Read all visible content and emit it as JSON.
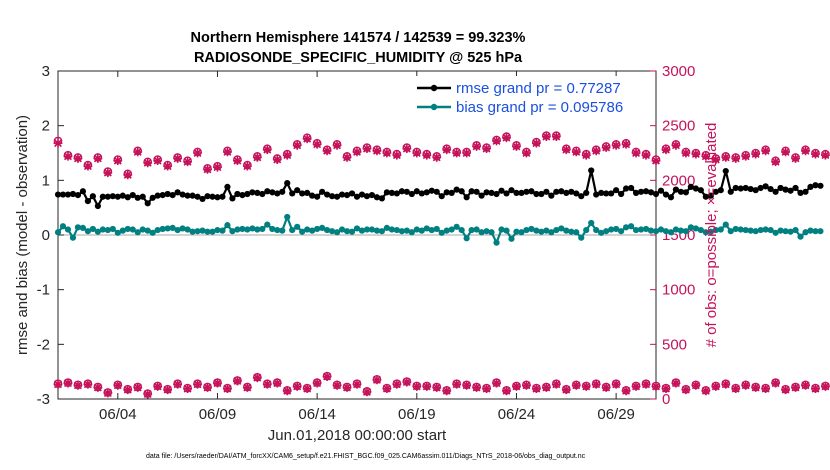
{
  "chart_data": {
    "type": "line",
    "title": "Northern Hemisphere 141574 / 142539 = 99.323%",
    "subtitle": "RADIOSONDE_SPECIFIC_HUMIDITY @ 525 hPa",
    "xlabel": "Jun.01,2018 00:00:00 start",
    "ylabel": "rmse and bias (model - observation)",
    "ylabel_right": "# of obs: o=possible; ×=evaluated",
    "footnote": "data file: /Users/raeder/DAI/ATM_forcXX/CAM6_setup/f.e21.FHIST_BGC.f09_025.CAM6assim.011/Diags_NTrS_2018-06/obs_diag_output.nc",
    "xlim": [
      1,
      31
    ],
    "ylim": [
      -3,
      3
    ],
    "ylim_right": [
      0,
      3000
    ],
    "xticks": [
      4,
      9,
      14,
      19,
      24,
      29
    ],
    "xtick_labels": [
      "06/04",
      "06/09",
      "06/14",
      "06/19",
      "06/24",
      "06/29"
    ],
    "yticks": [
      -3,
      -2,
      -1,
      0,
      1,
      2,
      3
    ],
    "ytick_labels": [
      "-3",
      "-2",
      "-1",
      "0",
      "1",
      "2",
      "3"
    ],
    "yticks_right": [
      0,
      500,
      1000,
      1500,
      2000,
      2500,
      3000
    ],
    "ytick_labels_right": [
      "0",
      "500",
      "1000",
      "1500",
      "2000",
      "2500",
      "3000"
    ],
    "grid": false,
    "legend_position": "top-right",
    "colors": {
      "rmse": "#000000",
      "bias": "#008080",
      "counts": "#c5135b",
      "zero_line": "#aaaaaa",
      "legend_text": "#1a4fe0"
    },
    "series": [
      {
        "name": "rmse grand pr = 0.77287",
        "axis": "left",
        "x_start": 1,
        "x_step": 0.25,
        "values": [
          0.74,
          0.74,
          0.74,
          0.75,
          0.73,
          0.8,
          0.62,
          0.71,
          0.53,
          0.7,
          0.7,
          0.71,
          0.7,
          0.72,
          0.69,
          0.73,
          0.68,
          0.7,
          0.58,
          0.68,
          0.72,
          0.73,
          0.75,
          0.73,
          0.78,
          0.74,
          0.72,
          0.72,
          0.7,
          0.66,
          0.71,
          0.7,
          0.69,
          0.7,
          0.88,
          0.67,
          0.75,
          0.73,
          0.75,
          0.78,
          0.77,
          0.75,
          0.8,
          0.78,
          0.76,
          0.79,
          0.95,
          0.76,
          0.82,
          0.76,
          0.77,
          0.72,
          0.7,
          0.79,
          0.74,
          0.71,
          0.7,
          0.74,
          0.73,
          0.76,
          0.7,
          0.74,
          0.71,
          0.73,
          0.69,
          0.67,
          0.78,
          0.77,
          0.76,
          0.8,
          0.79,
          0.75,
          0.8,
          0.76,
          0.78,
          0.81,
          0.79,
          0.71,
          0.78,
          0.77,
          0.83,
          0.8,
          0.69,
          0.8,
          0.79,
          0.72,
          0.78,
          0.77,
          0.75,
          0.81,
          0.76,
          0.82,
          0.77,
          0.77,
          0.79,
          0.8,
          0.75,
          0.75,
          0.79,
          0.72,
          0.79,
          0.8,
          0.77,
          0.79,
          0.76,
          0.71,
          0.77,
          1.18,
          0.74,
          0.77,
          0.76,
          0.76,
          0.82,
          0.75,
          0.85,
          0.86,
          0.77,
          0.79,
          0.8,
          0.78,
          0.75,
          0.81,
          0.74,
          0.69,
          0.83,
          0.79,
          0.78,
          0.88,
          0.85,
          0.82,
          0.7,
          0.72,
          0.79,
          0.82,
          1.17,
          0.79,
          0.86,
          0.85,
          0.86,
          0.84,
          0.82,
          0.86,
          0.89,
          0.84,
          0.79,
          0.86,
          0.83,
          0.81,
          0.86,
          0.77,
          0.79,
          0.88,
          0.91,
          0.9
        ]
      },
      {
        "name": "bias grand pr = 0.095786",
        "axis": "left",
        "x_start": 1,
        "x_step": 0.25,
        "values": [
          0.05,
          0.16,
          0.1,
          -0.05,
          0.14,
          0.13,
          0.07,
          0.11,
          0.06,
          0.1,
          0.09,
          0.11,
          0.04,
          0.08,
          0.11,
          0.1,
          0.05,
          0.1,
          0.08,
          0.04,
          0.09,
          0.11,
          0.12,
          0.13,
          0.09,
          0.12,
          0.1,
          0.06,
          0.07,
          0.08,
          0.06,
          0.06,
          0.09,
          0.08,
          0.18,
          0.07,
          0.1,
          0.11,
          0.1,
          0.12,
          0.1,
          0.11,
          0.19,
          0.11,
          0.09,
          0.08,
          0.33,
          0.09,
          0.15,
          0.06,
          0.1,
          0.08,
          0.11,
          0.13,
          0.09,
          0.07,
          0.05,
          0.1,
          0.07,
          0.06,
          0.12,
          0.08,
          0.1,
          0.1,
          0.08,
          0.07,
          0.13,
          0.1,
          0.09,
          0.07,
          0.08,
          0.05,
          0.1,
          0.08,
          0.12,
          0.09,
          0.11,
          0.04,
          0.08,
          0.1,
          0.15,
          0.09,
          -0.06,
          0.09,
          0.1,
          0.05,
          0.07,
          0.05,
          -0.14,
          0.1,
          0.08,
          -0.07,
          0.06,
          0.05,
          0.09,
          0.11,
          0.08,
          0.06,
          0.08,
          0.05,
          0.09,
          0.12,
          0.08,
          0.06,
          0.05,
          -0.05,
          0.09,
          0.22,
          0.09,
          0.04,
          0.07,
          0.1,
          0.11,
          0.07,
          0.14,
          0.16,
          0.09,
          0.1,
          0.11,
          0.08,
          0.07,
          0.1,
          0.07,
          0.05,
          0.1,
          0.08,
          0.07,
          0.14,
          0.12,
          0.09,
          0.05,
          0.06,
          0.09,
          0.1,
          0.19,
          0.07,
          0.11,
          0.1,
          0.09,
          0.08,
          0.07,
          0.09,
          0.1,
          0.09,
          0.04,
          0.08,
          0.07,
          0.06,
          0.09,
          -0.03,
          0.05,
          0.08,
          0.07,
          0.07
        ]
      },
      {
        "name": "obs possible",
        "axis": "right",
        "marker": "o",
        "x_start": 1,
        "x_step": 0.5,
        "values": [
          2360,
          2230,
          2210,
          2140,
          2210,
          2080,
          2190,
          2060,
          2270,
          2170,
          2190,
          2140,
          2210,
          2180,
          2260,
          2110,
          2130,
          2270,
          2190,
          2140,
          2220,
          2290,
          2200,
          2240,
          2330,
          2390,
          2340,
          2280,
          2330,
          2220,
          2270,
          2300,
          2280,
          2260,
          2240,
          2300,
          2260,
          2240,
          2220,
          2290,
          2260,
          2260,
          2320,
          2300,
          2370,
          2400,
          2320,
          2260,
          2350,
          2410,
          2410,
          2290,
          2270,
          2240,
          2280,
          2310,
          2330,
          2340,
          2260,
          2240,
          2190,
          2290,
          2330,
          2260,
          2250,
          2230,
          2200,
          2220,
          2210,
          2230,
          2250,
          2280,
          2180,
          2270,
          2210,
          2280,
          2250,
          2240,
          2280,
          2300,
          2300
        ],
        "evaluated_values": [
          2340,
          2220,
          2200,
          2130,
          2200,
          2070,
          2180,
          2050,
          2260,
          2160,
          2180,
          2130,
          2200,
          2170,
          2250,
          2100,
          2120,
          2260,
          2180,
          2130,
          2210,
          2280,
          2190,
          2230,
          2320,
          2380,
          2330,
          2270,
          2320,
          2210,
          2260,
          2290,
          2270,
          2250,
          2230,
          2290,
          2250,
          2230,
          2210,
          2280,
          2250,
          2250,
          2310,
          2290,
          2360,
          2390,
          2310,
          2250,
          2340,
          2400,
          2400,
          2280,
          2260,
          2230,
          2270,
          2300,
          2320,
          2330,
          2250,
          2230,
          2180,
          2280,
          2320,
          2250,
          2240,
          2220,
          2190,
          2210,
          2200,
          2220,
          2240,
          2270,
          2170,
          2260,
          2200,
          2270,
          2240,
          2230,
          2270,
          2290,
          2290
        ]
      },
      {
        "name": "obs possible (lower)",
        "axis": "right",
        "marker": "o",
        "x_start": 1,
        "x_step": 0.5,
        "values": [
          140,
          150,
          130,
          140,
          110,
          60,
          130,
          90,
          110,
          50,
          120,
          90,
          140,
          100,
          140,
          110,
          150,
          100,
          170,
          110,
          200,
          140,
          150,
          80,
          120,
          100,
          150,
          210,
          130,
          110,
          140,
          70,
          180,
          100,
          140,
          160,
          120,
          120,
          110,
          80,
          140,
          130,
          110,
          100,
          150,
          80,
          120,
          130,
          100,
          110,
          140,
          90,
          130,
          120,
          140,
          110,
          140,
          80,
          120,
          140,
          120,
          100,
          150,
          90,
          130,
          80,
          120,
          140,
          100,
          130,
          110,
          100,
          150,
          90,
          110,
          130,
          100,
          120,
          110,
          140,
          0
        ],
        "evaluated_values": [
          135,
          145,
          125,
          135,
          105,
          55,
          125,
          85,
          105,
          45,
          115,
          85,
          135,
          95,
          135,
          105,
          145,
          95,
          165,
          105,
          195,
          135,
          145,
          75,
          115,
          95,
          145,
          205,
          125,
          105,
          135,
          65,
          175,
          95,
          135,
          155,
          115,
          115,
          105,
          75,
          135,
          125,
          105,
          95,
          145,
          75,
          115,
          125,
          95,
          105,
          135,
          85,
          125,
          115,
          135,
          105,
          135,
          75,
          115,
          135,
          115,
          95,
          145,
          85,
          125,
          75,
          115,
          135,
          95,
          125,
          105,
          95,
          145,
          85,
          105,
          125,
          95,
          115,
          105,
          135,
          0
        ]
      }
    ]
  }
}
